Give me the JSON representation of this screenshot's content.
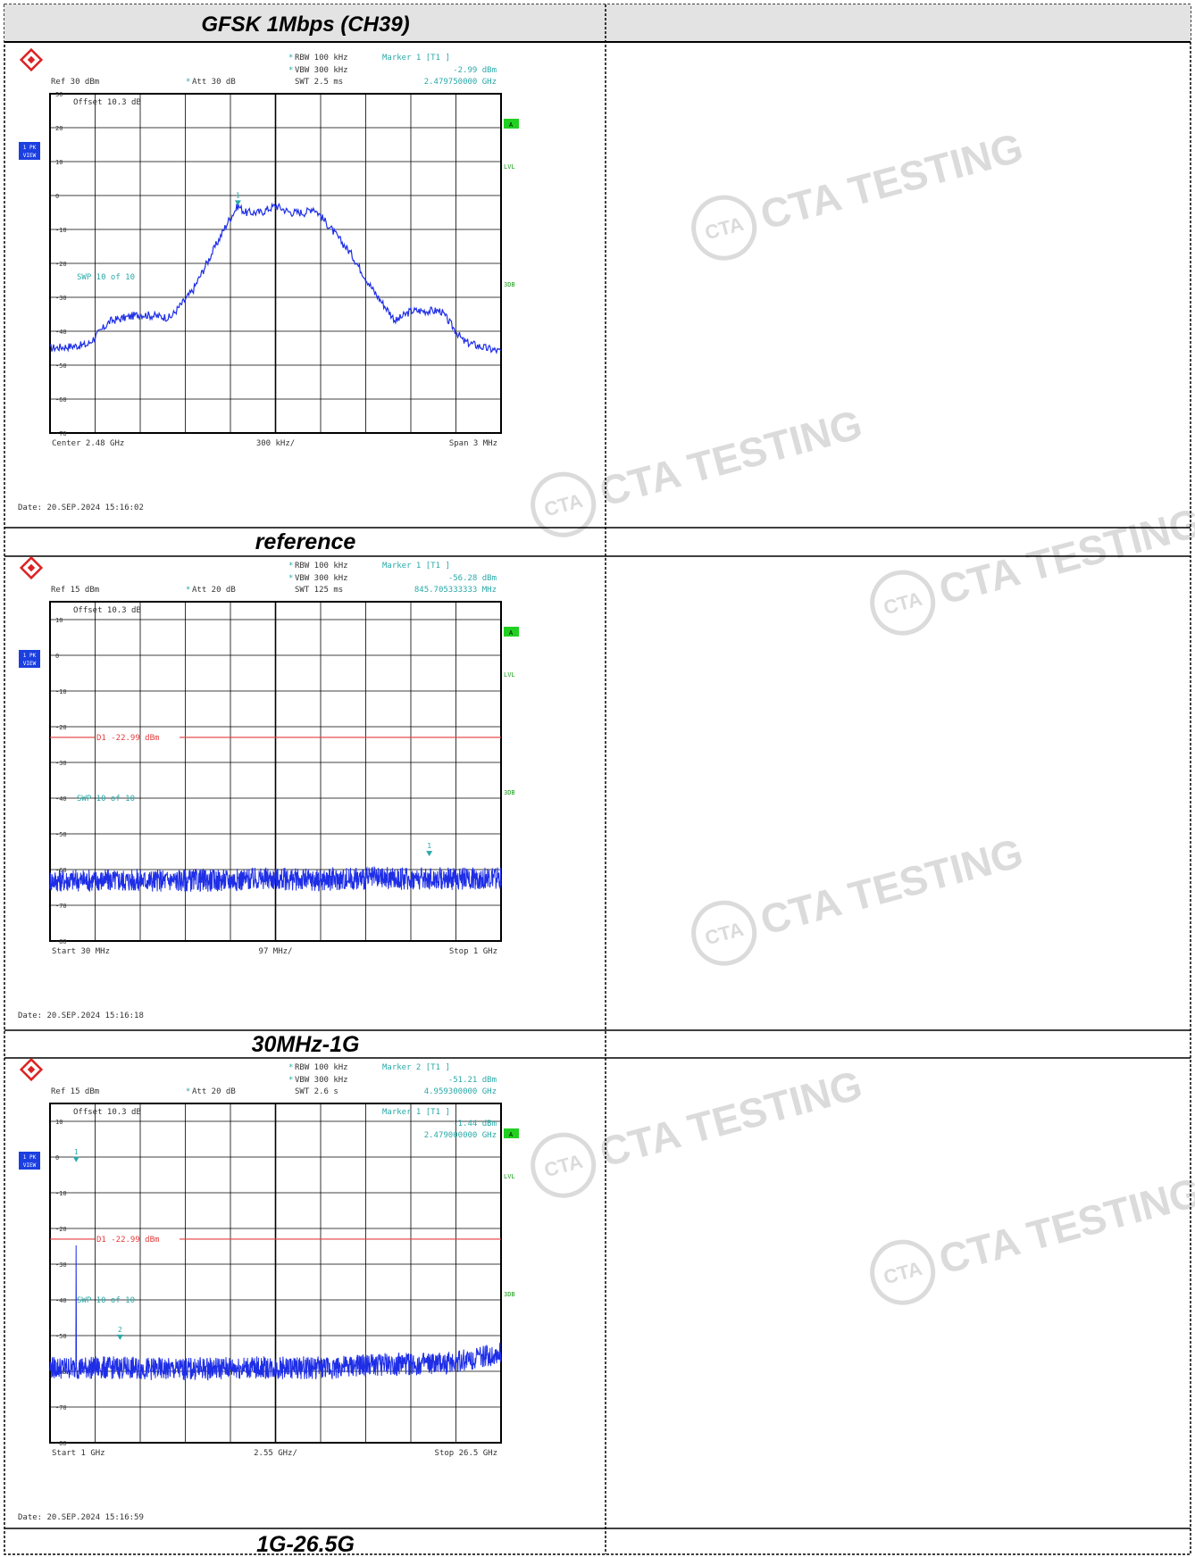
{
  "table": {
    "header_title": "GFSK 1Mbps (CH39)",
    "captions": [
      "reference",
      "30MHz-1G",
      "1G-26.5G"
    ]
  },
  "watermark": {
    "text": "CTA TESTING",
    "logo_text": "CTA",
    "color": "#d8d8d8"
  },
  "analyzer_common": {
    "rbw": "RBW 100 kHz",
    "vbw": "VBW 300 kHz",
    "offset": "Offset   10.3 dB",
    "trace_label": "1 PK",
    "view_label": "VIEW",
    "flag_a": "A",
    "lvl": "LVL",
    "db3": "3DB",
    "swp": "SWP    10 of   10"
  },
  "colors": {
    "trace": "#1e2ee6",
    "marker": "#2aa9a8",
    "limit": "#e33c3c",
    "frame": "#000000",
    "flag_green": "#22d022",
    "tag_blue": "#1b3fe0"
  },
  "plots": [
    {
      "ref": "Ref  30 dBm",
      "att": "Att  30 dB",
      "swt": "SWT 2.5 ms",
      "marker_title": "Marker 1 [T1 ]",
      "marker_level": "-2.99 dBm",
      "marker_freq": "2.479750000 GHz",
      "marker2_title": "",
      "marker2_level": "",
      "marker2_freq": "",
      "display_line": "",
      "x_left": "Center  2.48 GHz",
      "x_mid": "300 kHz/",
      "x_right": "Span  3 MHz",
      "date": "Date: 20.SEP.2024  15:16:02"
    },
    {
      "ref": "Ref  15 dBm",
      "att": "Att  20 dB",
      "swt": "SWT 125 ms",
      "marker_title": "Marker 1 [T1 ]",
      "marker_level": "-56.28 dBm",
      "marker_freq": "845.705333333 MHz",
      "marker2_title": "",
      "marker2_level": "",
      "marker2_freq": "",
      "display_line": "D1  -22.99  dBm",
      "x_left": "Start  30 MHz",
      "x_mid": "97 MHz/",
      "x_right": "Stop  1 GHz",
      "date": "Date: 20.SEP.2024  15:16:18"
    },
    {
      "ref": "Ref  15 dBm",
      "att": "Att  20 dB",
      "swt": "SWT 2.6 s",
      "marker_title": "Marker 2 [T1 ]",
      "marker_level": "-51.21 dBm",
      "marker_freq": "4.959300000 GHz",
      "marker2_title": "Marker 1 [T1 ]",
      "marker2_level": "-1.44 dBm",
      "marker2_freq": "2.479000000 GHz",
      "display_line": "D1  -22.99  dBm",
      "x_left": "Start  1 GHz",
      "x_mid": "2.55 GHz/",
      "x_right": "Stop  26.5 GHz",
      "date": "Date: 20.SEP.2024  15:16:59"
    }
  ],
  "chart_data": [
    {
      "type": "line",
      "title": "",
      "xlabel": "",
      "ylabel": "",
      "x_unit": "GHz",
      "y_unit": "dBm",
      "xlim": [
        2.4785,
        2.4815
      ],
      "ylim": [
        -70,
        30
      ],
      "yticks": [
        30,
        20,
        10,
        0,
        -10,
        -20,
        -30,
        -40,
        -50,
        -60,
        -70
      ],
      "grid": true,
      "reference_level": 30,
      "display_line": null,
      "series": [
        {
          "x": [
            2.4785,
            2.47875,
            2.4789,
            2.4791,
            2.4793,
            2.47945,
            2.4796,
            2.47968,
            2.47975,
            2.4798,
            2.4799,
            2.48,
            2.4801,
            2.4802,
            2.48025,
            2.4803,
            2.4805,
            2.48065,
            2.4808,
            2.4809,
            2.4811,
            2.48125,
            2.4814,
            2.4815
          ],
          "y": [
            -45,
            -44,
            -37,
            -35,
            -36,
            -28,
            -15,
            -8,
            -3,
            -5,
            -5,
            -3,
            -5,
            -5,
            -3.5,
            -6,
            -17,
            -28,
            -37,
            -34,
            -34,
            -43,
            -45,
            -46
          ]
        }
      ],
      "markers": [
        {
          "label": "1",
          "x": 2.47975,
          "y": -2.99
        }
      ]
    },
    {
      "type": "line",
      "title": "",
      "xlabel": "",
      "ylabel": "",
      "x_unit": "MHz",
      "y_unit": "dBm",
      "xlim": [
        30,
        1000
      ],
      "ylim": [
        -80,
        15
      ],
      "yticks": [
        10,
        0,
        -10,
        -20,
        -30,
        -40,
        -50,
        -60,
        -70,
        -80
      ],
      "grid": true,
      "reference_level": 15,
      "display_line": -22.99,
      "series": [
        {
          "x": [
            30,
            100,
            200,
            300,
            400,
            500,
            600,
            700,
            800,
            900,
            1000
          ],
          "y": [
            -63,
            -63,
            -63,
            -63,
            -63,
            -62.5,
            -63,
            -62.5,
            -62.5,
            -62.5,
            -62.5
          ]
        }
      ],
      "markers": [
        {
          "label": "1",
          "x": 845.705333333,
          "y": -56.28
        }
      ]
    },
    {
      "type": "line",
      "title": "",
      "xlabel": "",
      "ylabel": "",
      "x_unit": "GHz",
      "y_unit": "dBm",
      "xlim": [
        1,
        26.5
      ],
      "ylim": [
        -80,
        15
      ],
      "yticks": [
        10,
        0,
        -10,
        -20,
        -30,
        -40,
        -50,
        -60,
        -70,
        -80
      ],
      "grid": true,
      "reference_level": 15,
      "display_line": -22.99,
      "series": [
        {
          "x": [
            1,
            2.47,
            2.479,
            2.488,
            5,
            8,
            11,
            14,
            17,
            20,
            23,
            26.5
          ],
          "y": [
            -59,
            -59,
            -1.44,
            -59,
            -59,
            -59.5,
            -59,
            -59,
            -59,
            -58,
            -58,
            -55
          ]
        }
      ],
      "markers": [
        {
          "label": "1",
          "x": 2.479,
          "y": -1.44
        },
        {
          "label": "2",
          "x": 4.9593,
          "y": -51.21
        }
      ]
    }
  ]
}
